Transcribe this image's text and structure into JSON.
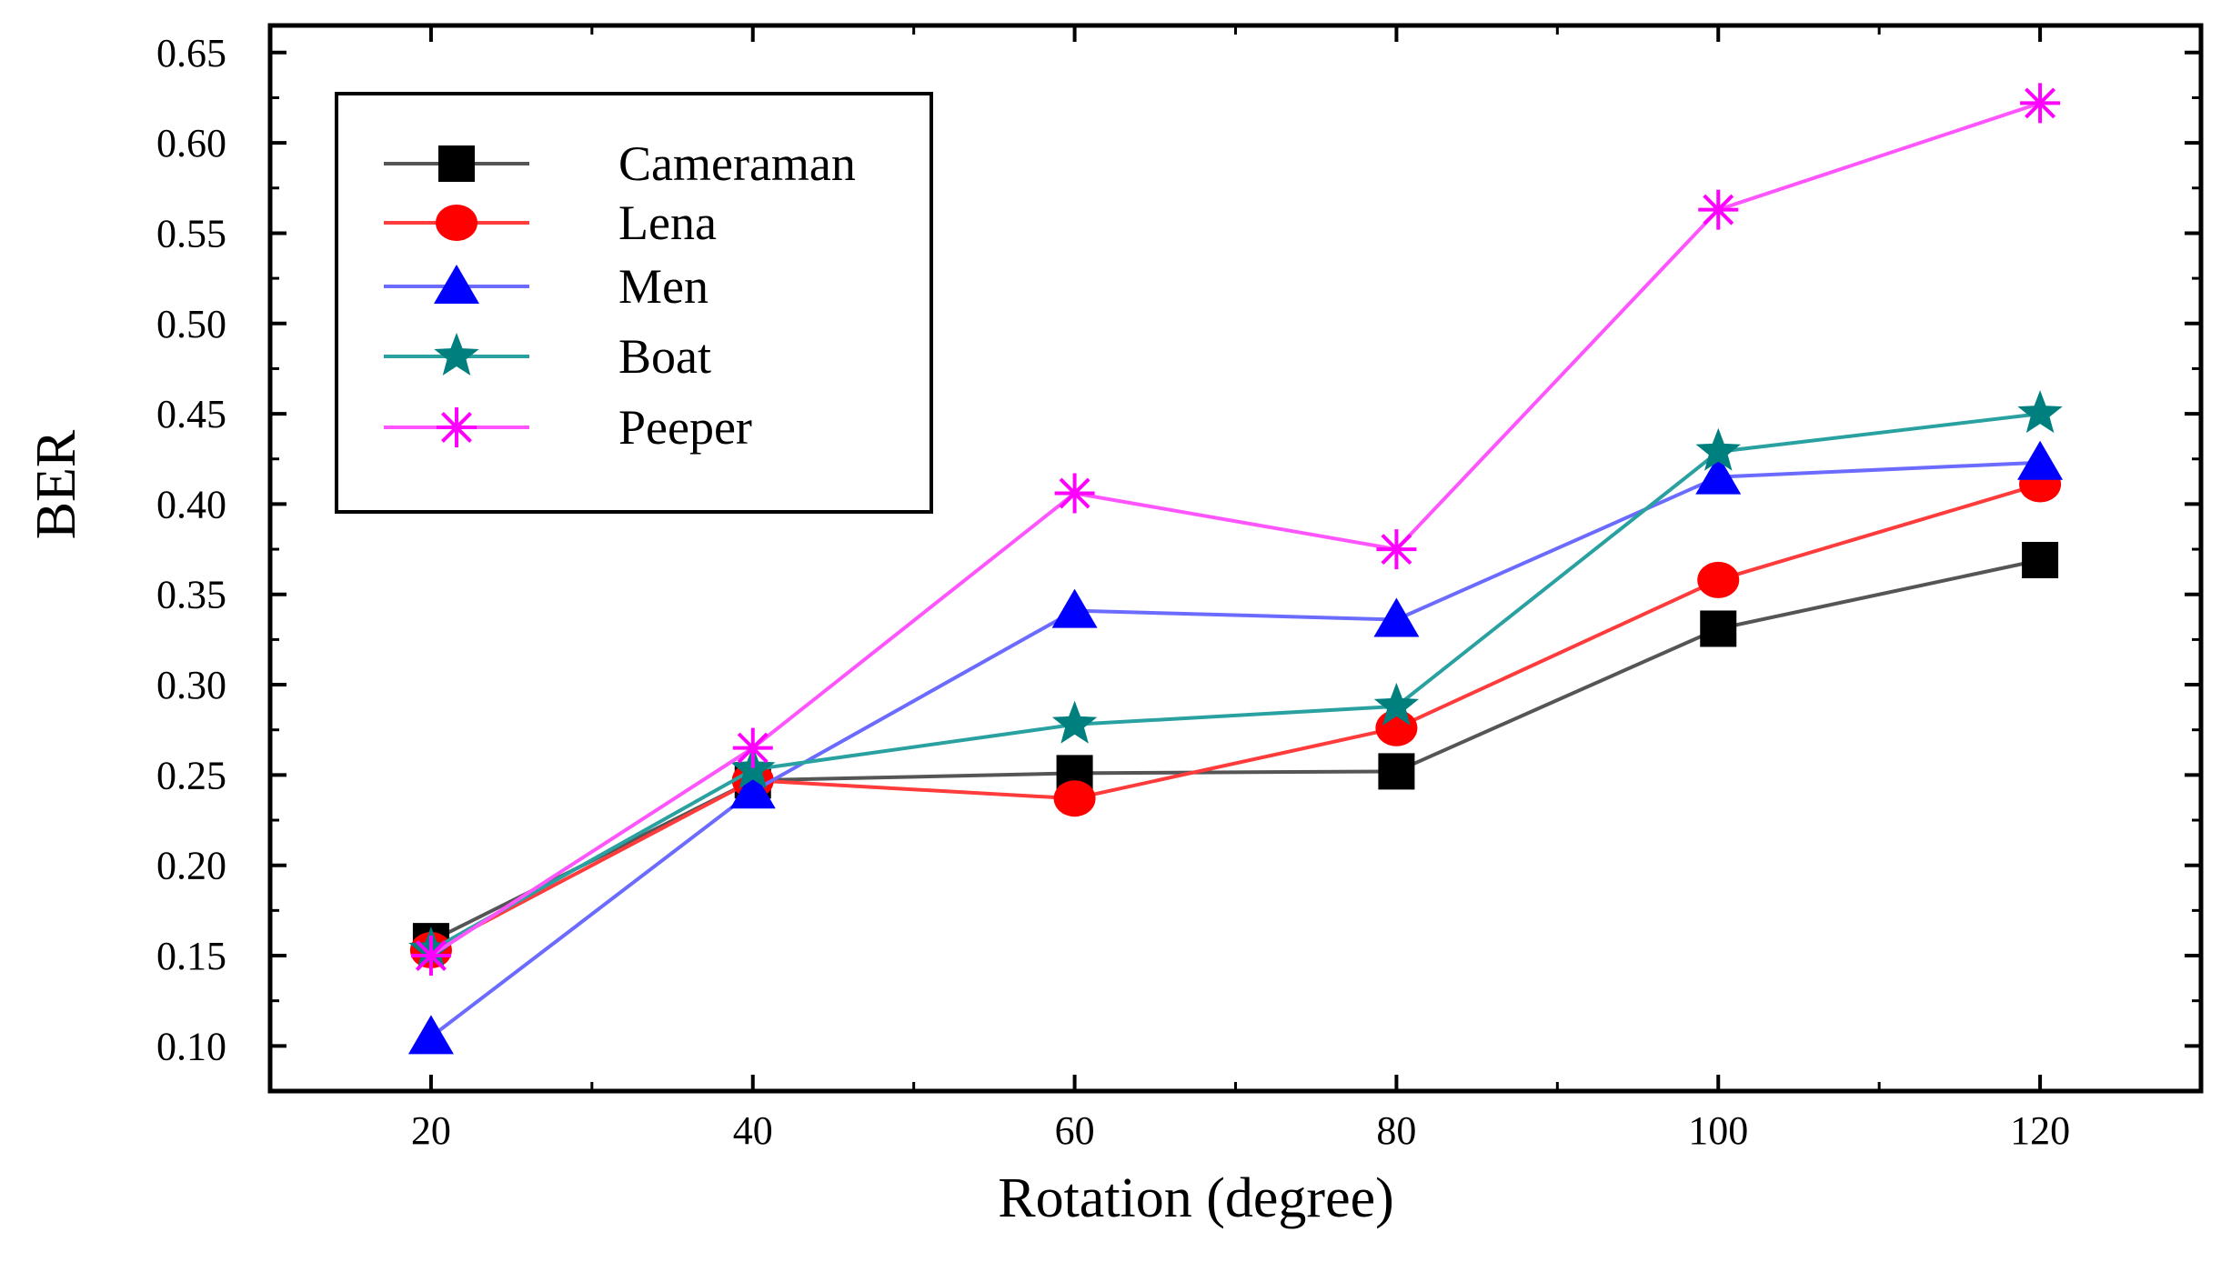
{
  "chart_data": {
    "type": "line",
    "title": "",
    "xlabel": "Rotation (degree)",
    "ylabel": "BER",
    "x": [
      20,
      40,
      60,
      80,
      100,
      120
    ],
    "x_ticks": [
      "20",
      "40",
      "60",
      "80",
      "100",
      "120"
    ],
    "y_ticks": [
      "0.10",
      "0.15",
      "0.20",
      "0.25",
      "0.30",
      "0.35",
      "0.40",
      "0.45",
      "0.50",
      "0.55",
      "0.60",
      "0.65"
    ],
    "xlim": [
      10,
      130
    ],
    "ylim": [
      0.075,
      0.665
    ],
    "grid": false,
    "legend_position": "top-left",
    "series": [
      {
        "name": "Cameraman",
        "color": "#000000",
        "line_color": "#555555",
        "marker": "square",
        "values": [
          0.158,
          0.247,
          0.251,
          0.252,
          0.331,
          0.369
        ]
      },
      {
        "name": "Lena",
        "color": "#ff0000",
        "line_color": "#ff3b3b",
        "marker": "circle",
        "values": [
          0.153,
          0.247,
          0.237,
          0.276,
          0.358,
          0.411
        ]
      },
      {
        "name": "Men",
        "color": "#0000ff",
        "line_color": "#6b6bff",
        "marker": "triangle",
        "values": [
          0.105,
          0.241,
          0.341,
          0.336,
          0.415,
          0.423
        ]
      },
      {
        "name": "Boat",
        "color": "#007f7f",
        "line_color": "#2aa1a1",
        "marker": "star",
        "values": [
          0.153,
          0.253,
          0.278,
          0.288,
          0.429,
          0.45
        ]
      },
      {
        "name": "Peeper",
        "color": "#ff00ff",
        "line_color": "#ff55ff",
        "marker": "asterisk",
        "values": [
          0.15,
          0.265,
          0.406,
          0.375,
          0.563,
          0.622
        ]
      }
    ]
  }
}
